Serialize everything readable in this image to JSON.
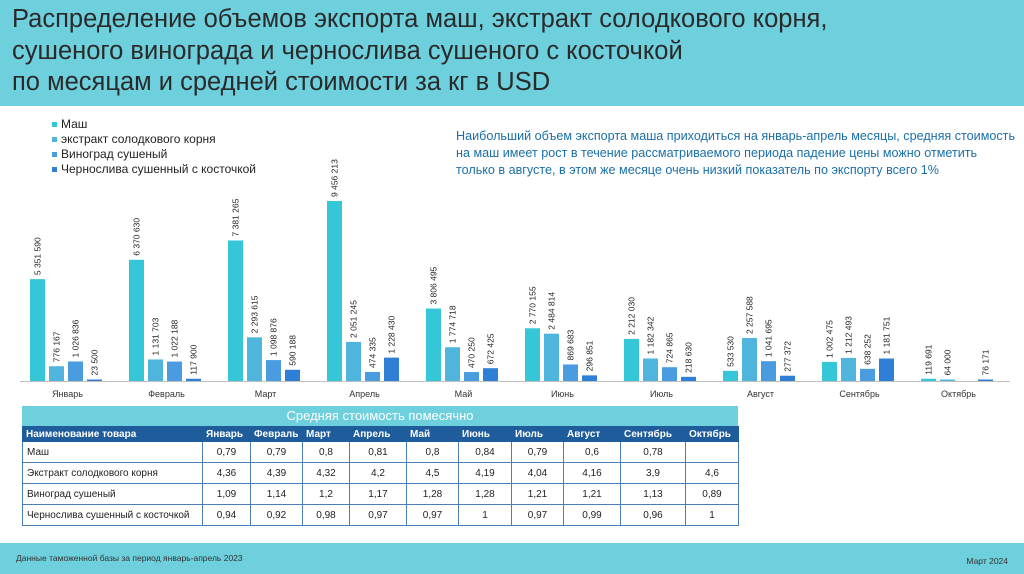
{
  "header": {
    "title_lines": [
      "Распределение объемов экспорта маш, экстракт солодкового корня,",
      "сушеного винограда и чернослива сушеного с косточкой",
      "по месяцам и средней стоимости за кг в USD"
    ]
  },
  "colors": {
    "header_bg": "#6ecfdd",
    "series": [
      "#35c6d8",
      "#4fb5dd",
      "#4a9be0",
      "#2f7fd6"
    ],
    "table_header": "#1f5c9b",
    "note_text": "#1a6fa8"
  },
  "note": "Наибольший объем экспорта маша приходиться на январь-апрель месяцы, средняя стоимость на маш имеет рост в течение рассматриваемого периода падение цены можно отметить только в августе, в этом же месяце очень низкий показатель по экспорту всего 1%",
  "chart_data": {
    "type": "bar",
    "categories": [
      "Январь",
      "Февраль",
      "Март",
      "Апрель",
      "Май",
      "Июнь",
      "Июль",
      "Август",
      "Сентябрь",
      "Октябрь"
    ],
    "series": [
      {
        "name": "Маш",
        "values": [
          5351590,
          6370630,
          7381265,
          9456213,
          3806495,
          2770155,
          2212030,
          533530,
          1002475,
          119691
        ],
        "labels": [
          "5 351 590",
          "6 370 630",
          "7 381 265",
          "9 456 213",
          "3 806 495",
          "2 770 155",
          "2 212 030",
          "533 530",
          "1 002 475",
          "119 691"
        ]
      },
      {
        "name": "экстракт солодкового корня",
        "values": [
          776167,
          1131703,
          2293615,
          2051245,
          1774718,
          2484814,
          1182342,
          2257588,
          1212493,
          64000
        ],
        "labels": [
          "776 167",
          "1 131 703",
          "2 293 615",
          "2 051 245",
          "1 774 718",
          "2 484 814",
          "1 182 342",
          "2 257 588",
          "1 212 493",
          "64 000"
        ]
      },
      {
        "name": "Виноград сушеный",
        "values": [
          1026836,
          1022188,
          1098876,
          474335,
          470250,
          869683,
          724865,
          1041695,
          638252,
          null
        ],
        "labels": [
          "1 026 836",
          "1 022 188",
          "1 098 876",
          "474 335",
          "470 250",
          "869 683",
          "724 865",
          "1 041 695",
          "638 252",
          ""
        ]
      },
      {
        "name": "Чернослива сушенный с косточкой",
        "values": [
          23500,
          117900,
          590188,
          1228430,
          672425,
          296851,
          218630,
          277372,
          1181751,
          76171
        ],
        "labels": [
          "23 500",
          "117 900",
          "590 188",
          "1 228 430",
          "672 425",
          "296 851",
          "218 630",
          "277 372",
          "1 181 751",
          "76 171"
        ]
      }
    ],
    "grid": false,
    "legend_position": "top-left"
  },
  "table": {
    "caption": "Средняя стоимость помесячно",
    "headers": [
      "Наименование товара",
      "Январь",
      "Февраль",
      "Март",
      "Апрель",
      "Май",
      "Июнь",
      "Июль",
      "Август",
      "Сентябрь",
      "Октябрь"
    ],
    "rows": [
      [
        "Маш",
        "0,79",
        "0,79",
        "0,8",
        "0,81",
        "0,8",
        "0,84",
        "0,79",
        "0,6",
        "0,78",
        ""
      ],
      [
        "Экстракт солодкового корня",
        "4,36",
        "4,39",
        "4,32",
        "4,2",
        "4,5",
        "4,19",
        "4,04",
        "4,16",
        "3,9",
        "4,6"
      ],
      [
        "Виноград сушеный",
        "1,09",
        "1,14",
        "1,2",
        "1,17",
        "1,28",
        "1,28",
        "1,21",
        "1,21",
        "1,13",
        "0,89"
      ],
      [
        "Чернослива сушенный с косточкой",
        "0,94",
        "0,92",
        "0,98",
        "0,97",
        "0,97",
        "1",
        "0,97",
        "0,99",
        "0,96",
        "1"
      ]
    ]
  },
  "footer": {
    "source": "Данные таможенной базы за период январь-апрель 2023",
    "date": "Март 2024"
  }
}
